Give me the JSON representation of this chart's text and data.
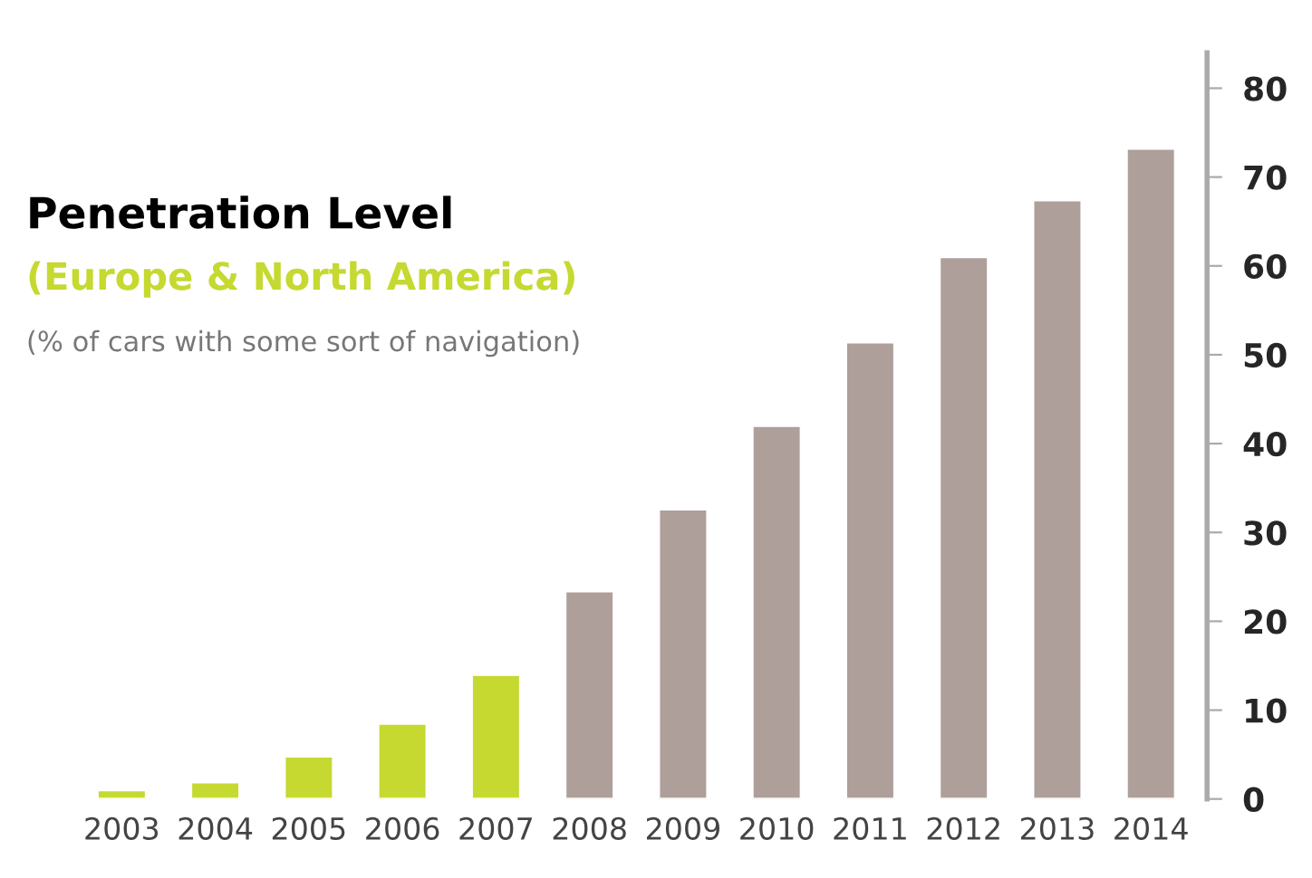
{
  "chart_data": {
    "type": "bar",
    "title": "Penetration Level",
    "subtitle": "(Europe & North America)",
    "annotations": [
      "(% of cars with some sort of navigation)"
    ],
    "categories": [
      "2003",
      "2004",
      "2005",
      "2006",
      "2007",
      "2008",
      "2009",
      "2010",
      "2011",
      "2012",
      "2013",
      "2014"
    ],
    "values": [
      1.0,
      1.9,
      4.8,
      8.5,
      14,
      23.4,
      32.6,
      42,
      51.4,
      61,
      67.4,
      73.2
    ],
    "colors": [
      "#c5d930",
      "#c5d930",
      "#c5d930",
      "#c5d930",
      "#c5d930",
      "#ae9f9a",
      "#ae9f9a",
      "#ae9f9a",
      "#ae9f9a",
      "#ae9f9a",
      "#ae9f9a",
      "#ae9f9a"
    ],
    "ylim": [
      0,
      84
    ],
    "yticks": [
      0,
      10,
      20,
      30,
      40,
      50,
      60,
      70,
      80
    ],
    "grid": false,
    "legend": false
  }
}
